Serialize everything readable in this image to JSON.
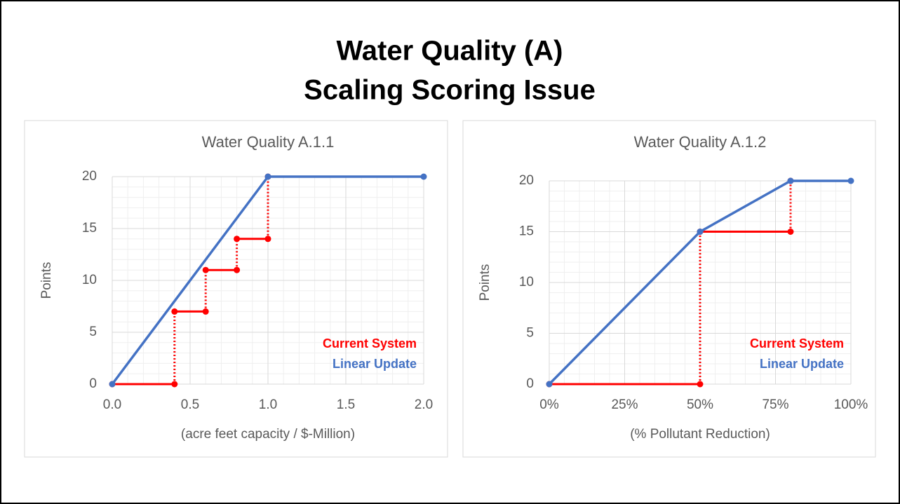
{
  "title": [
    "Water Quality (A)",
    "Scaling Scoring Issue"
  ],
  "chart_data": [
    {
      "type": "line",
      "title": "Water Quality A.1.1",
      "ylabel": "Points",
      "xlabel": "(acre feet capacity / $-Million)",
      "xlim": [
        0,
        2
      ],
      "xticks": [
        {
          "value": 0,
          "label": "0.0"
        },
        0.5,
        {
          "value": 1,
          "label": "1.0"
        },
        1.5,
        {
          "value": 2,
          "label": "2.0"
        }
      ],
      "ylim": [
        0,
        20
      ],
      "yticks": [
        0,
        5,
        10,
        15,
        20
      ],
      "grid": true,
      "minor_grid": true,
      "legend": "lower right",
      "series": [
        {
          "name": "Current System",
          "color": "#ff0000",
          "style": "step",
          "x": [
            0,
            0.4,
            0.4,
            0.6,
            0.6,
            0.8,
            0.8,
            1.0,
            1.0
          ],
          "values": [
            0,
            0,
            7,
            7,
            11,
            11,
            14,
            14,
            20
          ]
        },
        {
          "name": "Linear Update",
          "color": "#4472c4",
          "style": "solid",
          "x": [
            0,
            1,
            2
          ],
          "values": [
            0,
            20,
            20
          ]
        }
      ]
    },
    {
      "type": "line",
      "title": "Water Quality A.1.2",
      "ylabel": "Points",
      "xlabel": "(% Pollutant Reduction)",
      "xlim": [
        0,
        100
      ],
      "xticks": [
        {
          "value": 0,
          "label": "0%"
        },
        {
          "value": 25,
          "label": "25%"
        },
        {
          "value": 50,
          "label": "50%"
        },
        {
          "value": 75,
          "label": "75%"
        },
        {
          "value": 100,
          "label": "100%"
        }
      ],
      "ylim": [
        0,
        20
      ],
      "yticks": [
        0,
        5,
        10,
        15,
        20
      ],
      "grid": true,
      "minor_grid": true,
      "legend": "lower right",
      "series": [
        {
          "name": "Current System",
          "color": "#ff0000",
          "style": "step",
          "x": [
            0,
            50,
            50,
            80,
            80
          ],
          "values": [
            0,
            0,
            15,
            15,
            20
          ]
        },
        {
          "name": "Linear Update",
          "color": "#4472c4",
          "style": "solid",
          "x": [
            0,
            50,
            80,
            100
          ],
          "values": [
            0,
            15,
            20,
            20
          ]
        }
      ]
    }
  ]
}
